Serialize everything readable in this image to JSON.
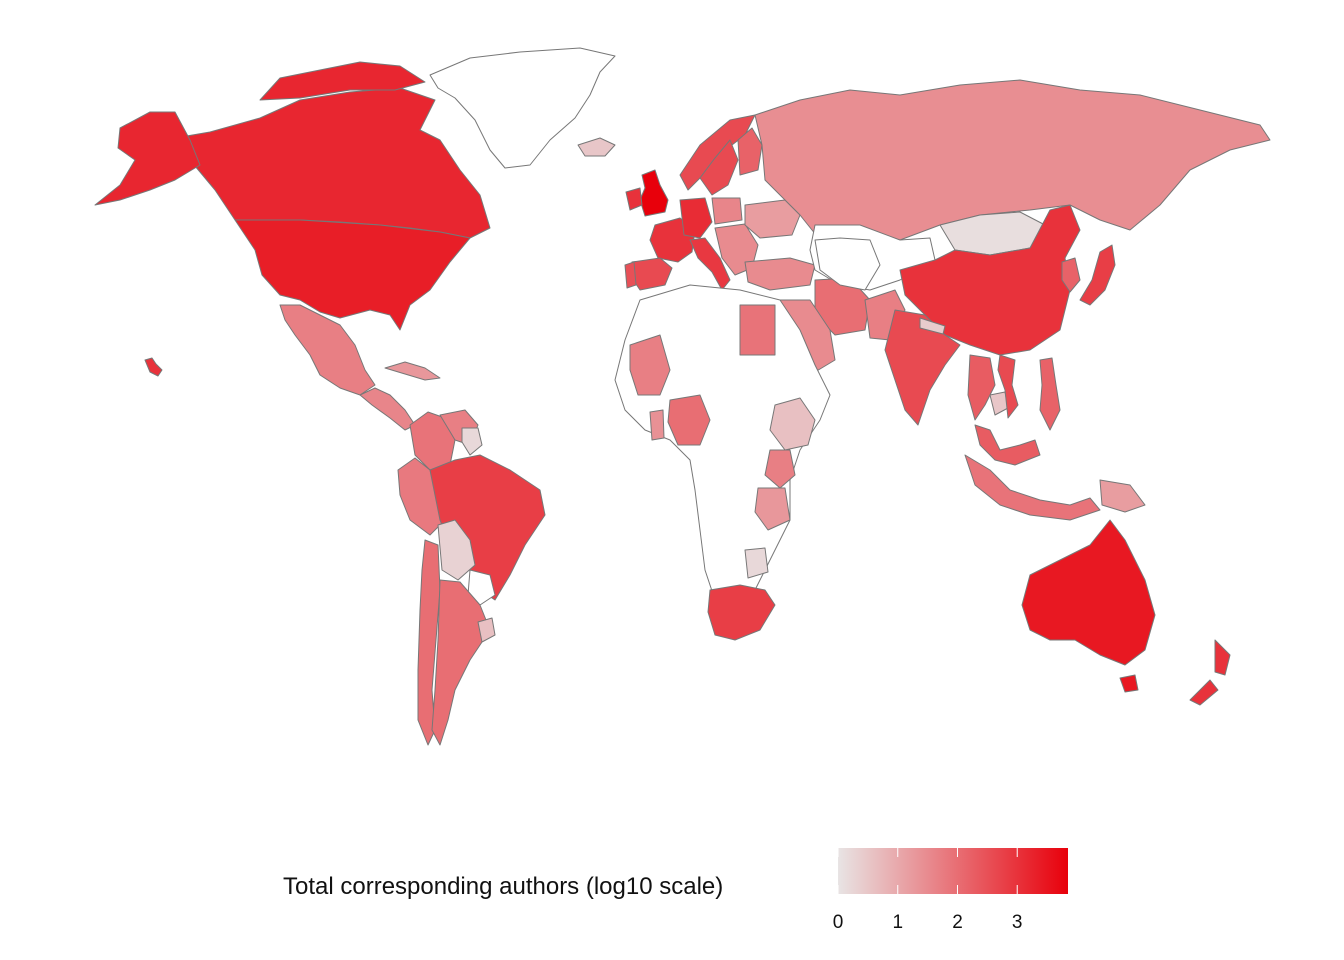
{
  "legend": {
    "title": "Total corresponding authors (log10 scale)",
    "scale": "log10",
    "domain": [
      0,
      3.85
    ],
    "ticks": [
      "0",
      "1",
      "2",
      "3"
    ],
    "color_low": "#e8e4e4",
    "color_high": "#e8000b",
    "no_data_color": "#ffffff"
  },
  "colors": {
    "border": "#777777",
    "background": "#ffffff"
  },
  "countries": [
    {
      "name": "Canada",
      "value": 3.2
    },
    {
      "name": "United States",
      "value": 3.35
    },
    {
      "name": "Greenland",
      "value": null
    },
    {
      "name": "Alaska",
      "value": 3.2
    },
    {
      "name": "Mexico",
      "value": 1.7
    },
    {
      "name": "Central America",
      "value": 1.6
    },
    {
      "name": "Cuba",
      "value": 1.3
    },
    {
      "name": "Hawaii",
      "value": 3.0
    },
    {
      "name": "Colombia",
      "value": 1.9
    },
    {
      "name": "Venezuela",
      "value": 1.7
    },
    {
      "name": "Guyana",
      "value": 0.2
    },
    {
      "name": "Peru",
      "value": 1.8
    },
    {
      "name": "Brazil",
      "value": 2.8
    },
    {
      "name": "Bolivia",
      "value": 0.3
    },
    {
      "name": "Paraguay",
      "value": null
    },
    {
      "name": "Chile",
      "value": 2.0
    },
    {
      "name": "Argentina",
      "value": 2.0
    },
    {
      "name": "Uruguay",
      "value": 0.6
    },
    {
      "name": "Iceland",
      "value": 0.5
    },
    {
      "name": "United Kingdom",
      "value": 3.85
    },
    {
      "name": "Ireland",
      "value": 3.0
    },
    {
      "name": "Norway",
      "value": 2.6
    },
    {
      "name": "Sweden",
      "value": 2.6
    },
    {
      "name": "Finland",
      "value": 2.2
    },
    {
      "name": "France",
      "value": 3.0
    },
    {
      "name": "Spain",
      "value": 2.6
    },
    {
      "name": "Portugal",
      "value": 2.5
    },
    {
      "name": "Germany",
      "value": 3.1
    },
    {
      "name": "Poland",
      "value": 1.6
    },
    {
      "name": "Italy",
      "value": 2.9
    },
    {
      "name": "Balkans",
      "value": 1.5
    },
    {
      "name": "Ukraine",
      "value": 1.2
    },
    {
      "name": "Turkey",
      "value": 1.5
    },
    {
      "name": "Russia",
      "value": 1.45
    },
    {
      "name": "Kazakhstan",
      "value": null
    },
    {
      "name": "Mongolia",
      "value": 0.1
    },
    {
      "name": "China",
      "value": 3.0
    },
    {
      "name": "Japan",
      "value": 2.8
    },
    {
      "name": "Korea",
      "value": 2.2
    },
    {
      "name": "Iran",
      "value": 2.0
    },
    {
      "name": "Saudi Arabia",
      "value": 1.5
    },
    {
      "name": "Pakistan",
      "value": 1.7
    },
    {
      "name": "India",
      "value": 2.6
    },
    {
      "name": "Nepal",
      "value": 0.4
    },
    {
      "name": "Thailand",
      "value": 2.3
    },
    {
      "name": "Cambodia",
      "value": 0.5
    },
    {
      "name": "Vietnam",
      "value": 2.6
    },
    {
      "name": "Philippines",
      "value": 2.2
    },
    {
      "name": "Malaysia",
      "value": 2.3
    },
    {
      "name": "Indonesia",
      "value": 1.9
    },
    {
      "name": "Papua New Guinea",
      "value": 1.2
    },
    {
      "name": "Australia",
      "value": 3.45
    },
    {
      "name": "New Zealand",
      "value": 3.0
    },
    {
      "name": "Egypt",
      "value": 1.9
    },
    {
      "name": "Mali",
      "value": 1.7
    },
    {
      "name": "Nigeria",
      "value": 2.0
    },
    {
      "name": "Ghana",
      "value": 1.4
    },
    {
      "name": "Ethiopia",
      "value": 0.6
    },
    {
      "name": "Kenya",
      "value": 1.7
    },
    {
      "name": "Tanzania",
      "value": 1.3
    },
    {
      "name": "Zimbabwe",
      "value": 0.2
    },
    {
      "name": "South Africa",
      "value": 2.8
    },
    {
      "name": "Africa (no data)",
      "value": null
    },
    {
      "name": "Central Asia (no data)",
      "value": null
    }
  ]
}
